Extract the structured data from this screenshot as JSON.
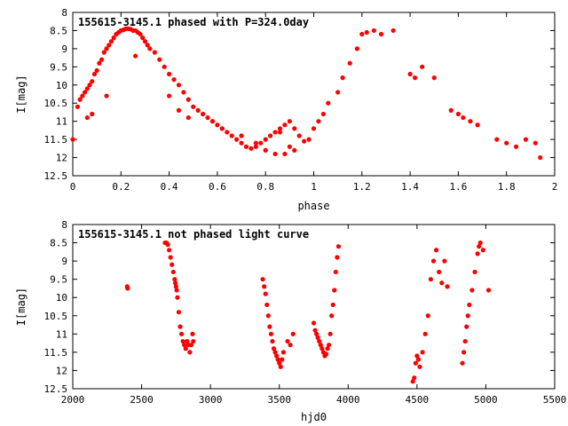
{
  "chart_data": [
    {
      "type": "scatter",
      "title": "155615-3145.1 phased with P=324.0day",
      "xlabel": "phase",
      "ylabel": "I[mag]",
      "xlim": [
        0,
        2
      ],
      "ylim": [
        12.5,
        8
      ],
      "y_inverted": true,
      "xticks": [
        "0",
        "0.2",
        "0.4",
        "0.6",
        "0.8",
        "1",
        "1.2",
        "1.4",
        "1.6",
        "1.8",
        "2"
      ],
      "yticks": [
        "8",
        "8.5",
        "9",
        "9.5",
        "10",
        "10.5",
        "11",
        "11.5",
        "12",
        "12.5"
      ],
      "marker_color": "#ff0000",
      "grid": false,
      "series": [
        {
          "x": [
            0.0,
            0.02,
            0.03,
            0.04,
            0.05,
            0.06,
            0.07,
            0.08,
            0.09,
            0.1,
            0.11,
            0.12,
            0.13,
            0.14,
            0.15,
            0.16,
            0.17,
            0.18,
            0.19,
            0.2,
            0.21,
            0.22,
            0.23,
            0.24,
            0.25,
            0.26,
            0.27,
            0.28,
            0.29,
            0.3,
            0.31,
            0.32,
            0.34,
            0.36,
            0.38,
            0.4,
            0.42,
            0.44,
            0.46,
            0.48,
            0.5,
            0.52,
            0.54,
            0.56,
            0.58,
            0.6,
            0.62,
            0.64,
            0.66,
            0.68,
            0.7,
            0.72,
            0.74,
            0.76,
            0.78,
            0.8,
            0.82,
            0.84,
            0.86,
            0.88,
            0.9,
            0.92,
            0.94,
            0.96,
            0.98,
            1.0,
            1.02,
            1.04,
            1.06,
            1.1,
            1.12,
            1.15,
            1.18,
            1.2,
            1.22,
            1.25,
            1.28,
            1.33,
            1.4,
            1.42,
            1.45,
            1.5,
            1.57,
            1.6,
            1.62,
            1.65,
            1.68,
            1.76,
            1.8,
            1.84,
            1.88,
            1.92,
            1.94,
            0.06,
            0.08,
            0.14,
            0.26,
            0.4,
            0.44,
            0.48,
            0.58,
            0.62,
            0.7,
            0.76,
            0.8,
            0.84,
            0.86,
            0.88,
            0.9,
            0.92
          ],
          "y": [
            11.5,
            10.6,
            10.4,
            10.3,
            10.2,
            10.1,
            10.0,
            9.9,
            9.7,
            9.6,
            9.4,
            9.3,
            9.1,
            9.0,
            8.9,
            8.8,
            8.7,
            8.6,
            8.55,
            8.5,
            8.48,
            8.45,
            8.45,
            8.46,
            8.5,
            8.5,
            8.55,
            8.6,
            8.7,
            8.8,
            8.9,
            9.0,
            9.1,
            9.3,
            9.5,
            9.7,
            9.85,
            10.0,
            10.2,
            10.4,
            10.6,
            10.7,
            10.8,
            10.9,
            11.0,
            11.1,
            11.2,
            11.3,
            11.4,
            11.5,
            11.6,
            11.7,
            11.75,
            11.7,
            11.6,
            11.5,
            11.4,
            11.3,
            11.2,
            11.1,
            11.0,
            11.2,
            11.4,
            11.55,
            11.5,
            11.2,
            11.0,
            10.8,
            10.5,
            10.2,
            9.8,
            9.4,
            9.0,
            8.6,
            8.55,
            8.5,
            8.6,
            8.5,
            9.7,
            9.8,
            9.5,
            9.8,
            10.7,
            10.8,
            10.9,
            11.0,
            11.1,
            11.5,
            11.6,
            11.7,
            11.5,
            11.6,
            12.0,
            10.9,
            10.8,
            10.3,
            9.2,
            10.3,
            10.7,
            10.9,
            11.0,
            11.2,
            11.4,
            11.6,
            11.8,
            11.9,
            11.3,
            11.9,
            11.7,
            11.8
          ]
        }
      ]
    },
    {
      "type": "scatter",
      "title": "155615-3145.1 not phased light curve",
      "xlabel": "hjd0",
      "ylabel": "I[mag]",
      "xlim": [
        2000,
        5500
      ],
      "ylim": [
        12.5,
        8
      ],
      "y_inverted": true,
      "xticks": [
        "2000",
        "2500",
        "3000",
        "3500",
        "4000",
        "4500",
        "5000",
        "5500"
      ],
      "yticks": [
        "8",
        "8.5",
        "9",
        "9.5",
        "10",
        "10.5",
        "11",
        "11.5",
        "12",
        "12.5"
      ],
      "marker_color": "#ff0000",
      "grid": false,
      "series": [
        {
          "x": [
            2395,
            2398,
            2670,
            2680,
            2690,
            2700,
            2710,
            2720,
            2730,
            2740,
            2745,
            2750,
            2755,
            2760,
            2770,
            2780,
            2790,
            2800,
            2810,
            2820,
            2830,
            2840,
            2850,
            2860,
            2870,
            2875,
            3380,
            3390,
            3400,
            3410,
            3420,
            3430,
            3440,
            3450,
            3460,
            3470,
            3480,
            3490,
            3500,
            3510,
            3520,
            3530,
            3560,
            3580,
            3600,
            3750,
            3760,
            3770,
            3780,
            3790,
            3800,
            3810,
            3820,
            3830,
            3840,
            3850,
            3860,
            3870,
            3880,
            3890,
            3900,
            3910,
            3920,
            3930,
            4470,
            4480,
            4490,
            4500,
            4510,
            4520,
            4540,
            4560,
            4580,
            4600,
            4620,
            4640,
            4660,
            4680,
            4700,
            4720,
            4830,
            4840,
            4850,
            4860,
            4870,
            4880,
            4900,
            4920,
            4940,
            4950,
            4960,
            4980,
            5020
          ],
          "y": [
            9.7,
            9.75,
            8.5,
            8.5,
            8.55,
            8.7,
            8.9,
            9.1,
            9.3,
            9.5,
            9.6,
            9.7,
            9.8,
            10.0,
            10.4,
            10.8,
            11.0,
            11.2,
            11.3,
            11.4,
            11.2,
            11.3,
            11.5,
            11.3,
            11.0,
            11.2,
            9.5,
            9.7,
            9.9,
            10.2,
            10.5,
            10.8,
            11.0,
            11.2,
            11.4,
            11.5,
            11.6,
            11.7,
            11.8,
            11.9,
            11.7,
            11.5,
            11.2,
            11.3,
            11.0,
            10.7,
            10.9,
            11.0,
            11.1,
            11.2,
            11.3,
            11.4,
            11.5,
            11.6,
            11.55,
            11.4,
            11.3,
            11.0,
            10.5,
            10.2,
            9.8,
            9.3,
            8.9,
            8.6,
            12.3,
            12.2,
            11.8,
            11.6,
            11.7,
            11.9,
            11.5,
            11.0,
            10.5,
            9.5,
            9.0,
            8.7,
            9.3,
            9.6,
            9.0,
            9.7,
            11.8,
            11.5,
            11.2,
            10.8,
            10.5,
            10.2,
            9.8,
            9.3,
            8.8,
            8.6,
            8.5,
            8.7,
            9.8
          ]
        }
      ]
    }
  ]
}
